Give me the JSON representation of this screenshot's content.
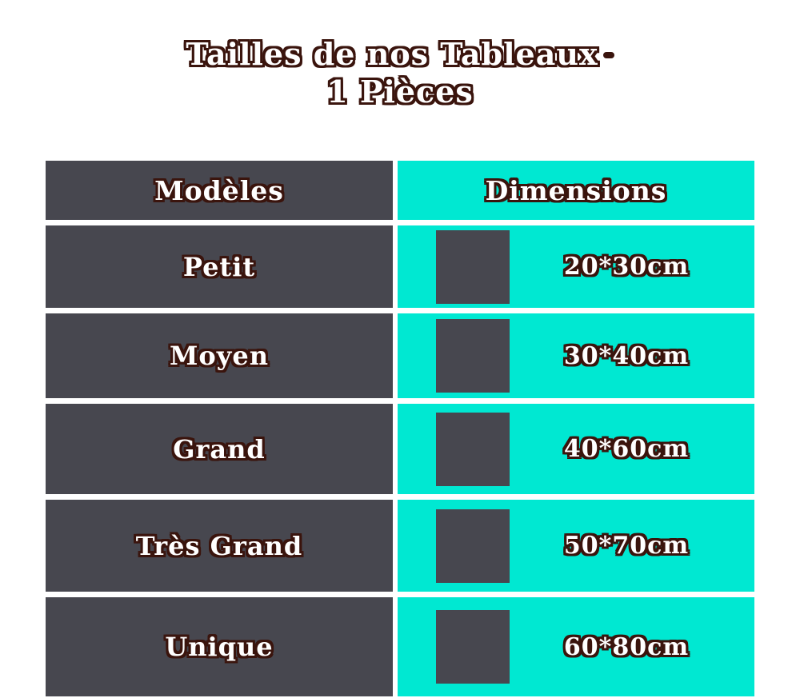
{
  "title": {
    "line1": "Tailles de nos Tableaux",
    "dash": "-",
    "line2": "1 Pièces"
  },
  "colors": {
    "dark": "#47474f",
    "cyan": "#00e8d2",
    "outline": "#3a140d",
    "dash_red": "#d22b26",
    "text_fill": "#ffffff"
  },
  "chart_data": {
    "type": "table",
    "title": "Tailles de nos Tableaux - 1 Pièces",
    "columns": [
      "Modèles",
      "Dimensions"
    ],
    "rows": [
      [
        "Petit",
        "20*30cm"
      ],
      [
        "Moyen",
        "30*40cm"
      ],
      [
        "Grand",
        "40*60cm"
      ],
      [
        "Très Grand",
        "50*70cm"
      ],
      [
        "Unique",
        "60*80cm"
      ]
    ],
    "layout_hints": {
      "model_column_background": "#47474f",
      "dimension_column_background": "#00e8d2",
      "each_dimension_cell_has_dark_square_swatch": true,
      "grid": "white gaps between cells"
    }
  }
}
